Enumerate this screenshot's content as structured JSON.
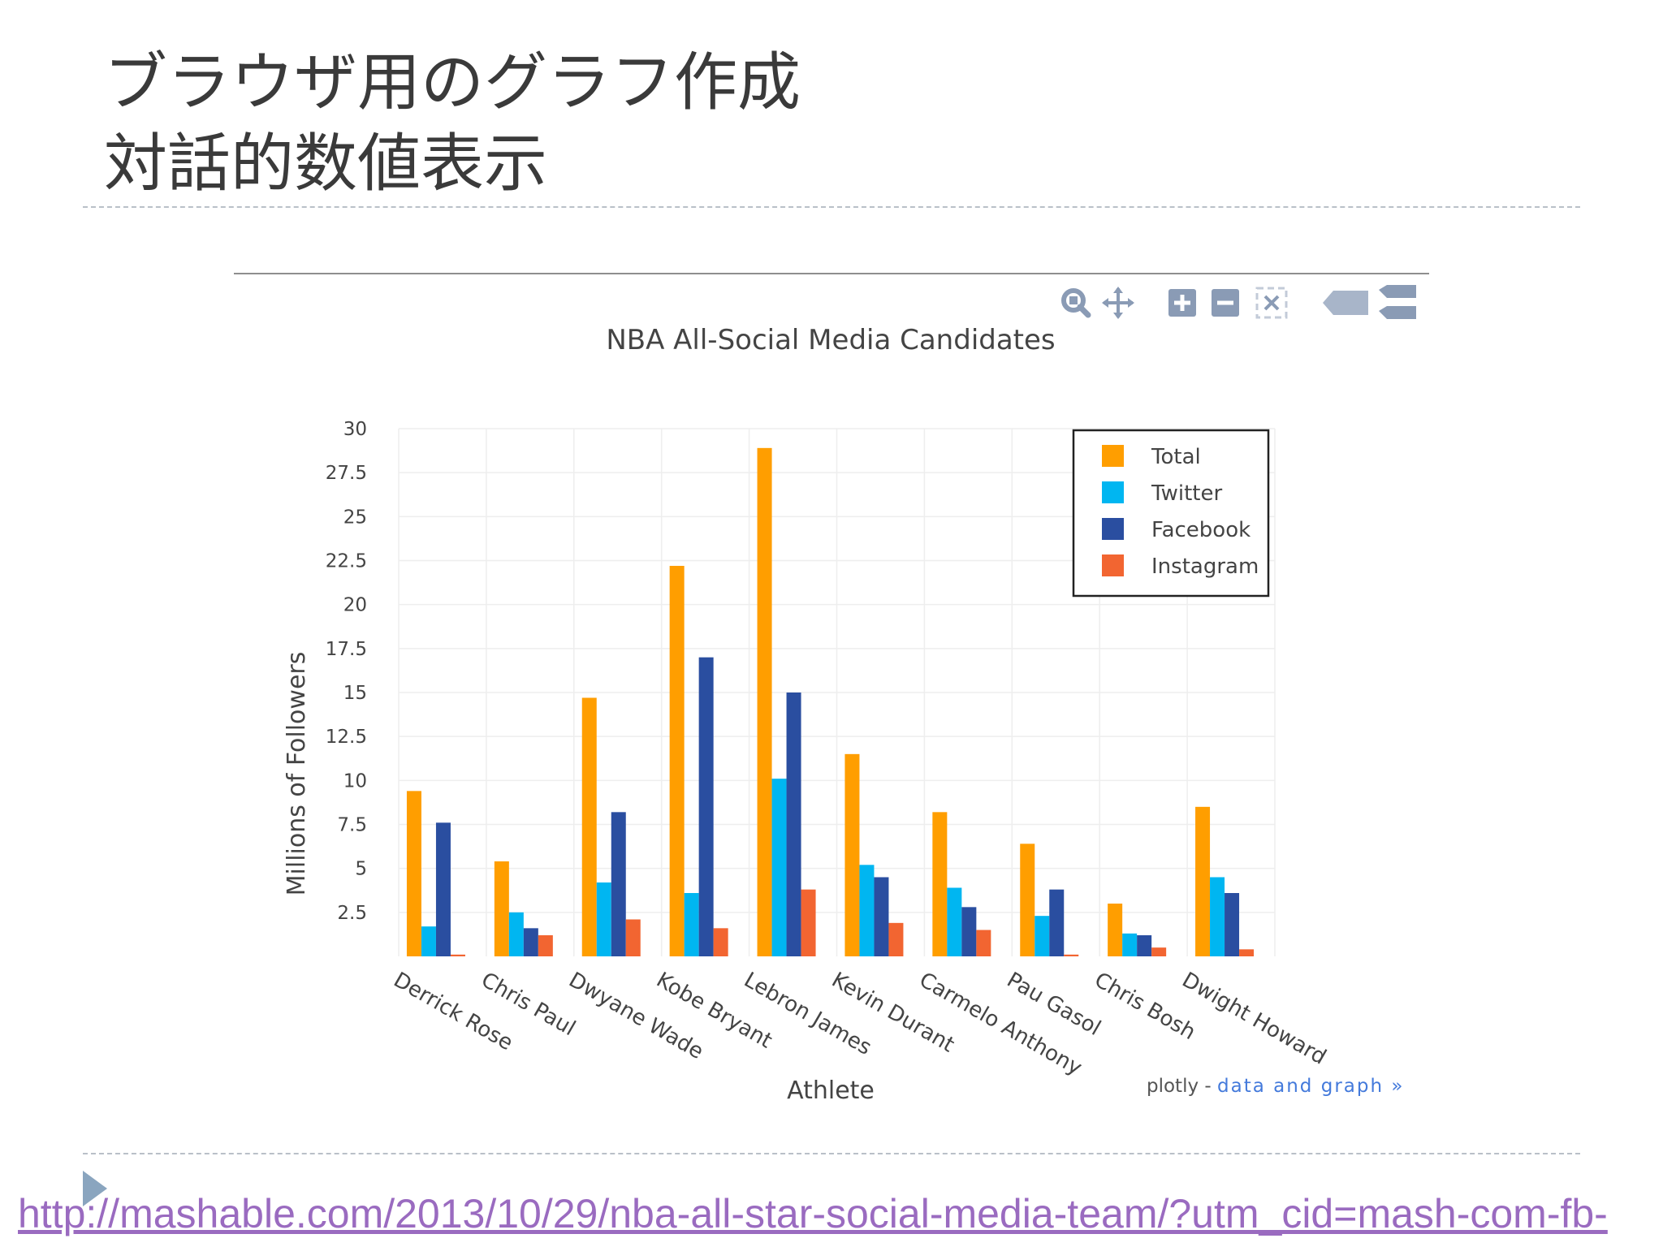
{
  "slide": {
    "title_line1": "ブラウザ用のグラフ作成",
    "title_line2": "対話的数値表示",
    "source_url": "http://mashable.com/2013/10/29/nba-all-star-social-media-team/?utm_cid=mash-com-fb-"
  },
  "toolbar": {
    "icons": [
      "zoom-icon",
      "pan-icon",
      "zoom-in-icon",
      "zoom-out-icon",
      "autoscale-icon",
      "hover-closest-icon",
      "hover-compare-icon"
    ]
  },
  "branding": {
    "plotly": "plotly - ",
    "link": "data and graph »"
  },
  "chart_data": {
    "type": "bar",
    "title": "NBA All-Social Media Candidates",
    "xlabel": "Athlete",
    "ylabel": "Millions of Followers",
    "ylim": [
      0,
      30
    ],
    "yticks": [
      "2.5",
      "5",
      "7.5",
      "10",
      "12.5",
      "15",
      "17.5",
      "20",
      "22.5",
      "25",
      "27.5",
      "30"
    ],
    "grid": true,
    "legend_position": "top-right",
    "categories": [
      "Derrick Rose",
      "Chris Paul",
      "Dwyane Wade",
      "Kobe Bryant",
      "Lebron James",
      "Kevin Durant",
      "Carmelo Anthony",
      "Pau Gasol",
      "Chris Bosh",
      "Dwight Howard"
    ],
    "series": [
      {
        "name": "Total",
        "color": "#FF9E00",
        "values": [
          9.4,
          5.4,
          14.7,
          22.2,
          28.9,
          11.5,
          8.2,
          6.4,
          3.0,
          8.5
        ]
      },
      {
        "name": "Twitter",
        "color": "#00B6F1",
        "values": [
          1.7,
          2.5,
          4.2,
          3.6,
          10.1,
          5.2,
          3.9,
          2.3,
          1.3,
          4.5
        ]
      },
      {
        "name": "Facebook",
        "color": "#2A4EA0",
        "values": [
          7.6,
          1.6,
          8.2,
          17.0,
          15.0,
          4.5,
          2.8,
          3.8,
          1.2,
          3.6
        ]
      },
      {
        "name": "Instagram",
        "color": "#F26531",
        "values": [
          0.1,
          1.2,
          2.1,
          1.6,
          3.8,
          1.9,
          1.5,
          0.1,
          0.5,
          0.4
        ]
      }
    ]
  }
}
